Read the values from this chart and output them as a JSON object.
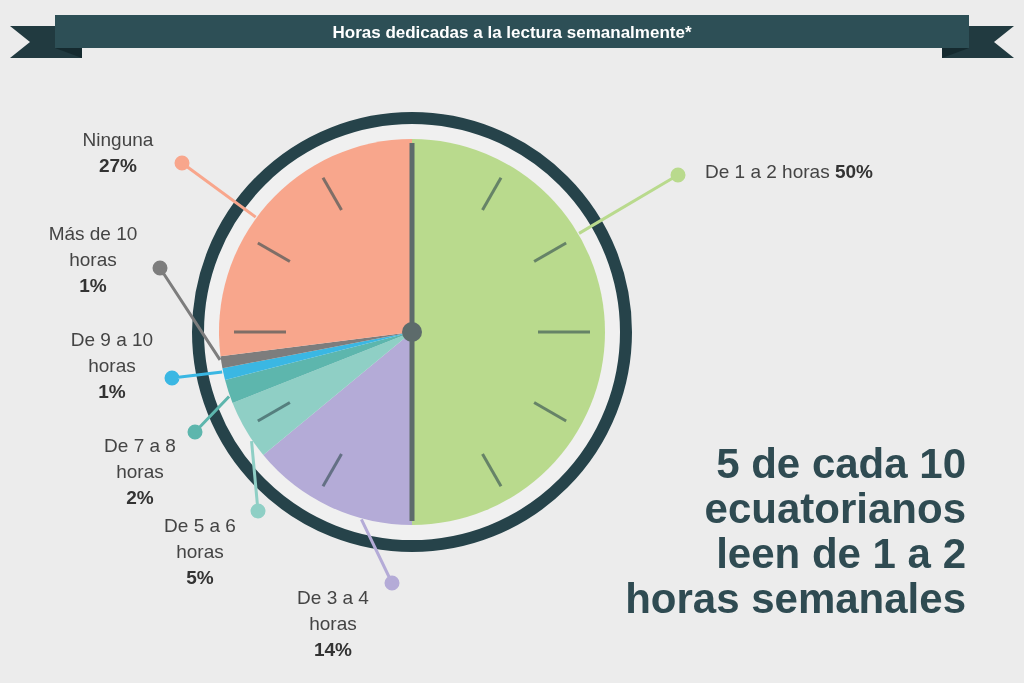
{
  "chart_data": {
    "type": "pie",
    "title": "Horas dedicadas a la lectura semanalmente*",
    "categories": [
      "De 1 a 2 horas",
      "De 3 a 4 horas",
      "De 5 a 6 horas",
      "De 7 a 8 horas",
      "De 9 a 10 horas",
      "Más de 10 horas",
      "Ninguna"
    ],
    "values": [
      50,
      14,
      5,
      2,
      1,
      1,
      27
    ],
    "colors": [
      "#b9da8d",
      "#b4abd7",
      "#8fcfc5",
      "#5db6ad",
      "#3ab7e3",
      "#7d7d7d",
      "#f8a68c"
    ],
    "value_labels": [
      "50%",
      "14%",
      "5%",
      "2%",
      "1%",
      "1%",
      "27%"
    ],
    "annotations": [
      "5 de cada 10 ecuatorianos leen de 1 a 2 horas semanales"
    ]
  }
}
